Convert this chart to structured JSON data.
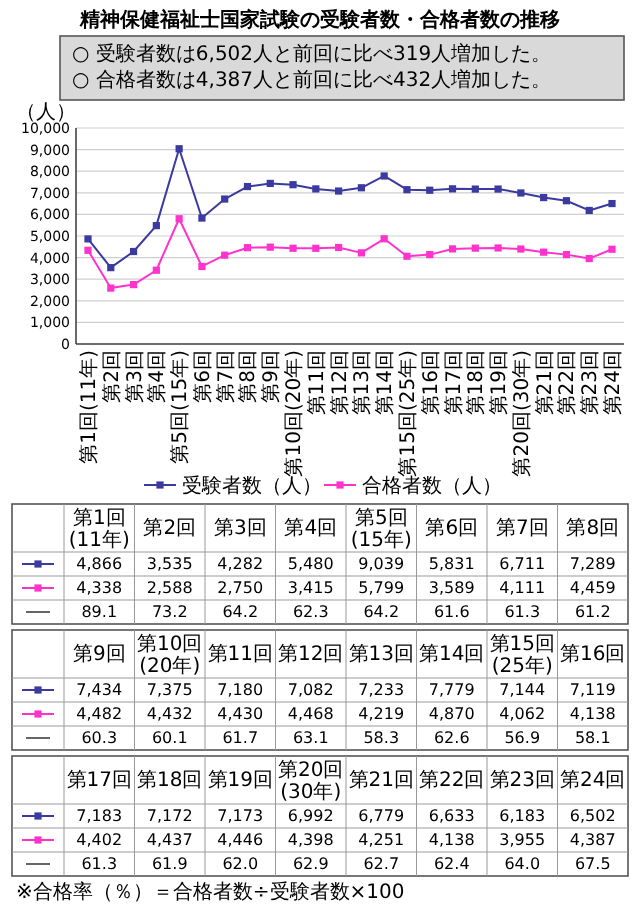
{
  "chart_data": [
    {
      "type": "line",
      "title": "精神保健福祉士国家試験の受験者数・合格者数の推移",
      "ylabel": "（人）",
      "annotations": [
        "○ 受験者数は6,502人と前回に比べ319人増加した。",
        "○ 合格者数は4,387人と前回に比べ432人増加した。"
      ],
      "categories": [
        "第1回(11年)",
        "第2回",
        "第3回",
        "第4回",
        "第5回(15年)",
        "第6回",
        "第7回",
        "第8回",
        "第9回",
        "第10回(20年)",
        "第11回",
        "第12回",
        "第13回",
        "第14回",
        "第15回(25年)",
        "第16回",
        "第17回",
        "第18回",
        "第19回",
        "第20回(30年)",
        "第21回",
        "第22回",
        "第23回",
        "第24回"
      ],
      "series": [
        {
          "name": "受験者数（人）",
          "color": "#3a3aa0",
          "values": [
            4866,
            3535,
            4282,
            5480,
            9039,
            5831,
            6711,
            7289,
            7434,
            7375,
            7180,
            7082,
            7233,
            7779,
            7144,
            7119,
            7183,
            7172,
            7173,
            6992,
            6779,
            6633,
            6183,
            6502
          ]
        },
        {
          "name": "合格者数（人）",
          "color": "#ff33cc",
          "values": [
            4338,
            2588,
            2750,
            3415,
            5799,
            3589,
            4111,
            4459,
            4482,
            4432,
            4430,
            4468,
            4219,
            4870,
            4062,
            4138,
            4402,
            4437,
            4446,
            4398,
            4251,
            4138,
            3955,
            4387
          ]
        }
      ],
      "ylim": [
        0,
        10000
      ],
      "yticks": [
        {
          "value": 0,
          "label": "0"
        },
        {
          "value": 1000,
          "label": "1,000"
        },
        {
          "value": 2000,
          "label": "2,000"
        },
        {
          "value": 3000,
          "label": "3,000"
        },
        {
          "value": 4000,
          "label": "4,000"
        },
        {
          "value": 5000,
          "label": "5,000"
        },
        {
          "value": 6000,
          "label": "6,000"
        },
        {
          "value": 7000,
          "label": "7,000"
        },
        {
          "value": 8000,
          "label": "8,000"
        },
        {
          "value": 9000,
          "label": "9,000"
        },
        {
          "value": 10000,
          "label": "10,000"
        }
      ],
      "grid": "y",
      "legend": "bottom",
      "marker": "square",
      "line_style": "solid"
    },
    {
      "type": "other",
      "categories": [
        "第1回(11年)",
        "第2回",
        "第3回",
        "第4回",
        "第5回(15年)",
        "第6回",
        "第7回",
        "第8回"
      ],
      "series": [
        {
          "color": "#3a3aa0",
          "values": [
            4866,
            3535,
            4282,
            5480,
            9039,
            5831,
            6711,
            7289
          ],
          "value_labels": [
            "4,866",
            "3,535",
            "4,282",
            "5,480",
            "9,039",
            "5,831",
            "6,711",
            "7,289"
          ]
        },
        {
          "color": "#ff33cc",
          "values": [
            4338,
            2588,
            2750,
            3415,
            5799,
            3589,
            4111,
            4459
          ],
          "value_labels": [
            "4,338",
            "2,588",
            "2,750",
            "3,415",
            "5,799",
            "3,589",
            "4,111",
            "4,459"
          ]
        },
        {
          "values": [
            89.1,
            73.2,
            64.2,
            62.3,
            64.2,
            61.6,
            61.3,
            61.2
          ],
          "value_labels": [
            "89.1",
            "73.2",
            "64.2",
            "62.3",
            "64.2",
            "61.6",
            "61.3",
            "61.2"
          ]
        }
      ]
    },
    {
      "type": "other",
      "categories": [
        "第9回",
        "第10回(20年)",
        "第11回",
        "第12回",
        "第13回",
        "第14回",
        "第15回(25年)",
        "第16回"
      ],
      "series": [
        {
          "color": "#3a3aa0",
          "values": [
            7434,
            7375,
            7180,
            7082,
            7233,
            7779,
            7144,
            7119
          ],
          "value_labels": [
            "7,434",
            "7,375",
            "7,180",
            "7,082",
            "7,233",
            "7,779",
            "7,144",
            "7,119"
          ]
        },
        {
          "color": "#ff33cc",
          "values": [
            4482,
            4432,
            4430,
            4468,
            4219,
            4870,
            4062,
            4138
          ],
          "value_labels": [
            "4,482",
            "4,432",
            "4,430",
            "4,468",
            "4,219",
            "4,870",
            "4,062",
            "4,138"
          ]
        },
        {
          "values": [
            60.3,
            60.1,
            61.7,
            63.1,
            58.3,
            62.6,
            56.9,
            58.1
          ],
          "value_labels": [
            "60.3",
            "60.1",
            "61.7",
            "63.1",
            "58.3",
            "62.6",
            "56.9",
            "58.1"
          ]
        }
      ]
    },
    {
      "type": "other",
      "annotations": [
        "※合格率（％）＝合格者数÷受験者数×100"
      ],
      "categories": [
        "第17回",
        "第18回",
        "第19回",
        "第20回(30年)",
        "第21回",
        "第22回",
        "第23回",
        "第24回"
      ],
      "series": [
        {
          "color": "#3a3aa0",
          "values": [
            7183,
            7172,
            7173,
            6992,
            6779,
            6633,
            6183,
            6502
          ],
          "value_labels": [
            "7,183",
            "7,172",
            "7,173",
            "6,992",
            "6,779",
            "6,633",
            "6,183",
            "6,502"
          ]
        },
        {
          "color": "#ff33cc",
          "values": [
            4402,
            4437,
            4446,
            4398,
            4251,
            4138,
            3955,
            4387
          ],
          "value_labels": [
            "4,402",
            "4,437",
            "4,446",
            "4,398",
            "4,251",
            "4,138",
            "3,955",
            "4,387"
          ]
        },
        {
          "values": [
            61.3,
            61.9,
            62.0,
            62.9,
            62.7,
            62.4,
            64.0,
            67.5
          ],
          "value_labels": [
            "61.3",
            "61.9",
            "62.0",
            "62.9",
            "62.7",
            "62.4",
            "64.0",
            "67.5"
          ]
        }
      ]
    }
  ]
}
